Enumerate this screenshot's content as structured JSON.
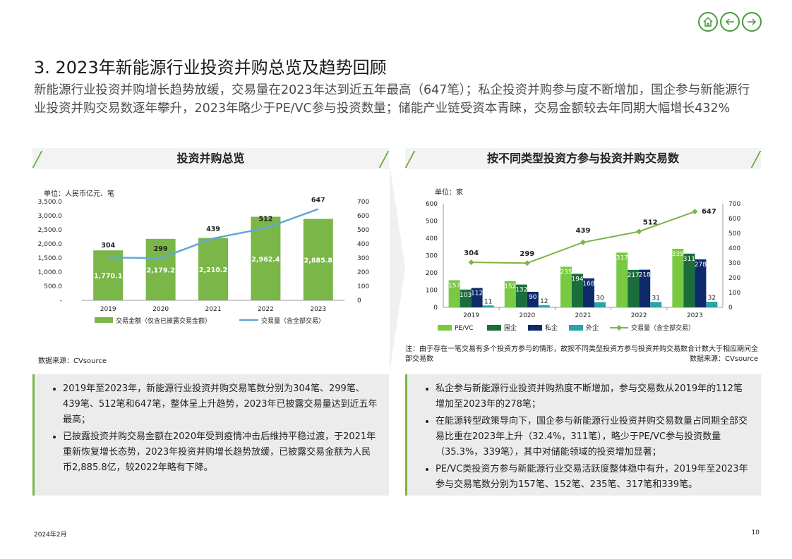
{
  "nav": {
    "home": "home-icon",
    "prev": "arrow-left-icon",
    "next": "arrow-right-icon"
  },
  "title": "3. 2023年新能源行业投资并购总览及趋势回顾",
  "subtitle": "新能源行业投资并购增长趋势放缓，交易量在2023年达到近五年最高（647笔）；私企投资并购参与度不断增加，国企参与新能源行业投资并购交易数逐年攀升，2023年略少于PE/VC参与投资数量；储能产业链受资本青睐，交易金额较去年同期大幅增长432%",
  "left_panel": {
    "heading": "投资并购总览",
    "unit": "单位：人民币亿元、笔",
    "source": "数据来源：CVsource",
    "bullets": [
      "2019年至2023年，新能源行业投资并购交易笔数分别为304笔、299笔、439笔、512笔和647笔，整体呈上升趋势，2023年已披露交易量达到近五年最高；",
      "已披露投资并购交易金额在2020年受到疫情冲击后维持平稳过渡，于2021年重新恢复增长态势，2023年投资并购增长趋势放缓，已披露交易金额为人民币2,885.8亿，较2022年略有下降。"
    ]
  },
  "right_panel": {
    "heading": "按不同类型投资方参与投资并购交易数",
    "unit": "单位：家",
    "note": "注：由于存在一笔交易有多个投资方参与的情形，故按不同类型投资方参与投资并购交易数合计数大于相应期间全部交易数",
    "source": "数据来源：CVsource",
    "bullets": [
      "私企参与新能源行业投资并购热度不断增加，参与交易数从2019年的112笔增加至2023年的278笔；",
      "在能源转型政策导向下，国企参与新能源行业投资并购交易数量占同期全部交易比重在2023年上升（32.4%，311笔），略少于PE/VC参与投资数量（35.3%，339笔），其中对储能领域的投资增加显著；",
      "PE/VC类投资方参与新能源行业交易活跃度整体稳中有升，2019年至2023年参与交易笔数分别为157笔、152笔、235笔、317笔和339笔。"
    ]
  },
  "footer": {
    "date": "2024年2月",
    "page": "10"
  },
  "chart_data": [
    {
      "type": "bar",
      "categories": [
        "2019",
        "2020",
        "2021",
        "2022",
        "2023"
      ],
      "series": [
        {
          "name": "交易金额（仅含已披露交易金额）",
          "type": "bar",
          "axis": "left",
          "values": [
            1770.1,
            2179.2,
            2210.2,
            2962.4,
            2885.8
          ],
          "labels": [
            "1,770.1",
            "2,179.2",
            "2,210.2",
            "2,962.4",
            "2,885.8"
          ],
          "color": "#7ab648"
        },
        {
          "name": "交易量（含全部交易）",
          "type": "line",
          "axis": "right",
          "values": [
            304,
            299,
            439,
            512,
            647
          ],
          "color": "#5fa8d8"
        }
      ],
      "y_left": {
        "ylim": [
          0,
          3500
        ],
        "ticks": [
          "-",
          "500.0",
          "1,000.0",
          "1,500.0",
          "2,000.0",
          "2,500.0",
          "3,000.0",
          "3,500.0"
        ]
      },
      "y_right": {
        "ylim": [
          0,
          700
        ],
        "ticks": [
          "0",
          "100",
          "200",
          "300",
          "400",
          "500",
          "600",
          "700"
        ]
      },
      "legend_position": "bottom"
    },
    {
      "type": "bar",
      "categories": [
        "2019",
        "2020",
        "2021",
        "2022",
        "2023"
      ],
      "series": [
        {
          "name": "PE/VC",
          "type": "bar",
          "axis": "left",
          "values": [
            157,
            152,
            235,
            317,
            339
          ],
          "color": "#7ac943"
        },
        {
          "name": "国企",
          "type": "bar",
          "axis": "left",
          "values": [
            103,
            132,
            194,
            217,
            311
          ],
          "color": "#1b6e3c"
        },
        {
          "name": "私企",
          "type": "bar",
          "axis": "left",
          "values": [
            112,
            90,
            168,
            218,
            278
          ],
          "color": "#0f2a6b"
        },
        {
          "name": "外企",
          "type": "bar",
          "axis": "left",
          "values": [
            11,
            12,
            30,
            31,
            32
          ],
          "color": "#2aa3a8"
        },
        {
          "name": "交易量（含全部交易）",
          "type": "line",
          "axis": "right",
          "values": [
            304,
            299,
            439,
            512,
            647
          ],
          "color": "#7ab648"
        }
      ],
      "y_left": {
        "ylim": [
          0,
          600
        ],
        "ticks": [
          "0",
          "100",
          "200",
          "300",
          "400",
          "500",
          "600"
        ]
      },
      "y_right": {
        "ylim": [
          0,
          700
        ],
        "ticks": [
          "0",
          "100",
          "200",
          "300",
          "400",
          "500",
          "600",
          "700"
        ]
      },
      "legend_position": "bottom"
    }
  ]
}
